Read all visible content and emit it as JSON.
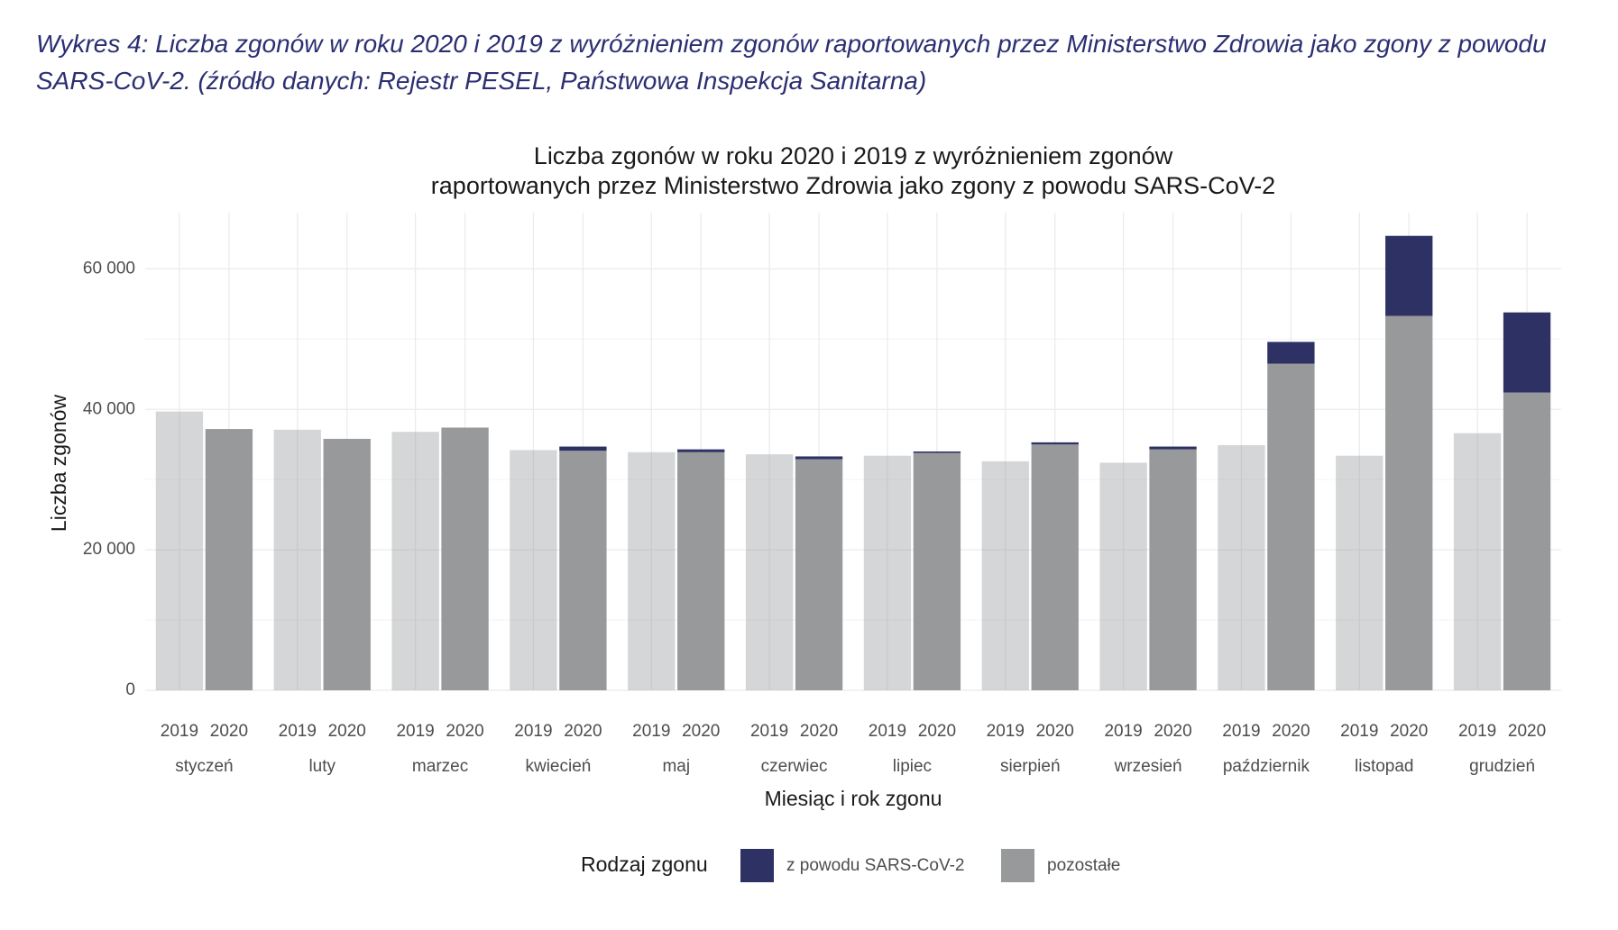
{
  "caption": "Wykres 4: Liczba zgonów w roku 2020 i 2019 z wyróżnieniem zgonów raportowanych przez Ministerstwo Zdrowia jako zgony z powodu SARS-CoV-2. (źródło danych: Rejestr PESEL, Państwowa Inspekcja Sanitarna)",
  "chart_data": {
    "type": "grouped_stacked_bar",
    "title": [
      "Liczba zgonów w roku 2020 i 2019 z wyróżnieniem zgonów",
      "raportowanych przez Ministerstwo Zdrowia jako zgony z powodu SARS-CoV-2"
    ],
    "x_label": "Miesiąc i rok zgonu",
    "y_label": "Liczba zgonów",
    "categories": [
      "styczeń",
      "luty",
      "marzec",
      "kwiecień",
      "maj",
      "czerwiec",
      "lipiec",
      "sierpień",
      "wrzesień",
      "październik",
      "listopad",
      "grudzień"
    ],
    "groups": [
      "2019",
      "2020"
    ],
    "group_alpha": [
      0.4,
      1
    ],
    "legend_title": "Rodzaj zgonu",
    "series": [
      {
        "name": "z powodu SARS-CoV-2",
        "color": "#2e3163",
        "values": [
          [
            0,
            0
          ],
          [
            0,
            0
          ],
          [
            0,
            0
          ],
          [
            0,
            600
          ],
          [
            0,
            400
          ],
          [
            0,
            400
          ],
          [
            0,
            200
          ],
          [
            0,
            300
          ],
          [
            0,
            400
          ],
          [
            0,
            3100
          ],
          [
            0,
            11400
          ],
          [
            0,
            11400
          ]
        ]
      },
      {
        "name": "pozostałe",
        "color": "#97999b",
        "values": [
          [
            39700,
            37200
          ],
          [
            37100,
            35800
          ],
          [
            36800,
            37400
          ],
          [
            34200,
            34100
          ],
          [
            33900,
            33900
          ],
          [
            33600,
            32900
          ],
          [
            33400,
            33800
          ],
          [
            32600,
            35000
          ],
          [
            32400,
            34300
          ],
          [
            34900,
            46500
          ],
          [
            33400,
            53300
          ],
          [
            36600,
            42400
          ]
        ]
      }
    ],
    "ylim": [
      0,
      68000
    ],
    "yticks": [
      {
        "value": 0,
        "label": "0"
      },
      {
        "value": 20000,
        "label": "20 000"
      },
      {
        "value": 40000,
        "label": "40 000"
      },
      {
        "value": 60000,
        "label": "60 000"
      }
    ],
    "yminor": [
      10000,
      30000,
      50000
    ],
    "grid": true,
    "legend": "bottom"
  }
}
